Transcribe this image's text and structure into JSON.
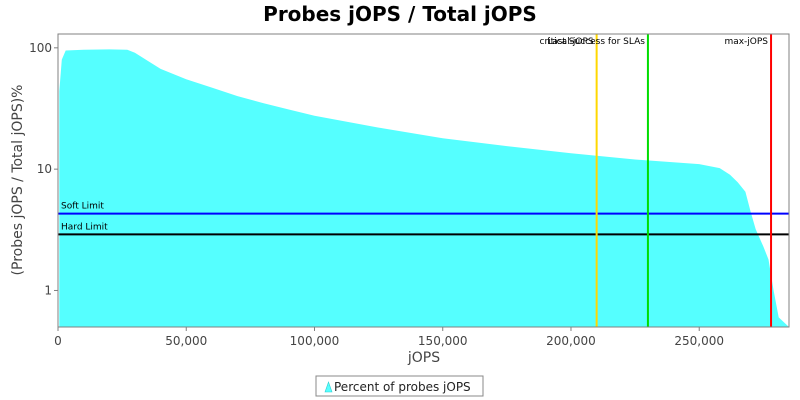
{
  "chart_data": {
    "type": "area",
    "title": "Probes jOPS / Total jOPS",
    "xlabel": "jOPS",
    "ylabel": "(Probes jOPS / Total jOPS)%",
    "xlim": [
      0,
      285000
    ],
    "ylim": [
      0.5,
      130
    ],
    "yscale": "log",
    "x_ticks": [
      0,
      50000,
      100000,
      150000,
      200000,
      250000
    ],
    "x_tick_labels": [
      "0",
      "50,000",
      "100,000",
      "150,000",
      "200,000",
      "250,000"
    ],
    "y_ticks": [
      1,
      10,
      100
    ],
    "y_tick_labels": [
      "1",
      "10",
      "100"
    ],
    "grid": false,
    "legend_position": "bottom-center",
    "series": [
      {
        "name": "Percent of probes jOPS",
        "color": "#55ffff",
        "x": [
          500,
          1500,
          3000,
          10000,
          20000,
          27000,
          30000,
          35000,
          40000,
          50000,
          60000,
          70000,
          80000,
          90000,
          100000,
          125000,
          150000,
          175000,
          200000,
          225000,
          250000,
          258000,
          262000,
          265000,
          268000,
          270000,
          272000,
          275000,
          277000,
          279000,
          281000,
          285000
        ],
        "y": [
          44,
          80,
          95,
          96.5,
          97,
          96.5,
          91,
          78,
          67,
          55,
          47,
          40,
          35,
          31,
          27.5,
          22,
          18,
          15.5,
          13.5,
          12,
          11,
          10.2,
          9,
          7.8,
          6.5,
          4.5,
          3.2,
          2.3,
          1.8,
          1.0,
          0.6,
          0.5
        ]
      }
    ],
    "reference_lines": [
      {
        "orientation": "horizontal",
        "label": "Soft Limit",
        "value": 4.3,
        "color": "#0000ff"
      },
      {
        "orientation": "horizontal",
        "label": "Hard Limit",
        "value": 2.9,
        "color": "#000000"
      },
      {
        "orientation": "vertical",
        "label": "critical-jOPS",
        "value": 210000,
        "color": "#ffd700"
      },
      {
        "orientation": "vertical",
        "label": "Last Success for SLAs",
        "value": 230000,
        "color": "#00dd00"
      },
      {
        "orientation": "vertical",
        "label": "max-jOPS",
        "value": 278000,
        "color": "#ff0000"
      }
    ]
  }
}
